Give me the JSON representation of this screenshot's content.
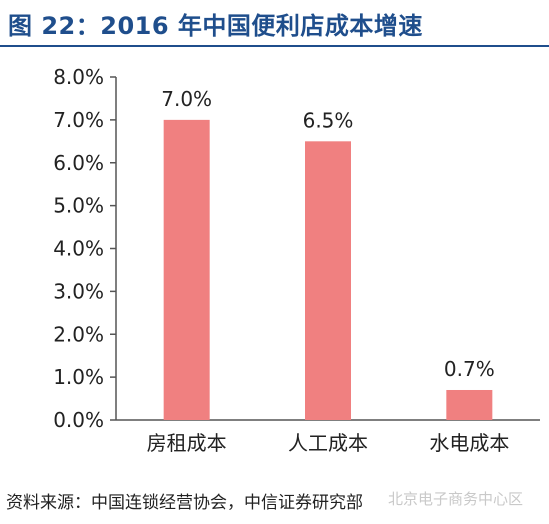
{
  "title": "图 22：2016 年中国便利店成本增速",
  "source": "资料来源：中国连锁经营协会，中信证券研究部",
  "watermark": "北京电子商务中心区",
  "colors": {
    "title": "#1f4e8c",
    "bar": "#f08080",
    "axis": "#555555"
  },
  "chart_data": {
    "type": "bar",
    "categories": [
      "房租成本",
      "人工成本",
      "水电成本"
    ],
    "values": [
      7.0,
      6.5,
      0.7
    ],
    "data_labels": [
      "7.0%",
      "6.5%",
      "0.7%"
    ],
    "title": "",
    "xlabel": "",
    "ylabel": "",
    "ylim": [
      0,
      8
    ],
    "y_ticks": [
      0,
      1,
      2,
      3,
      4,
      5,
      6,
      7,
      8
    ],
    "y_tick_labels": [
      "0.0%",
      "1.0%",
      "2.0%",
      "3.0%",
      "4.0%",
      "5.0%",
      "6.0%",
      "7.0%",
      "8.0%"
    ],
    "grid": false,
    "legend": "none"
  }
}
